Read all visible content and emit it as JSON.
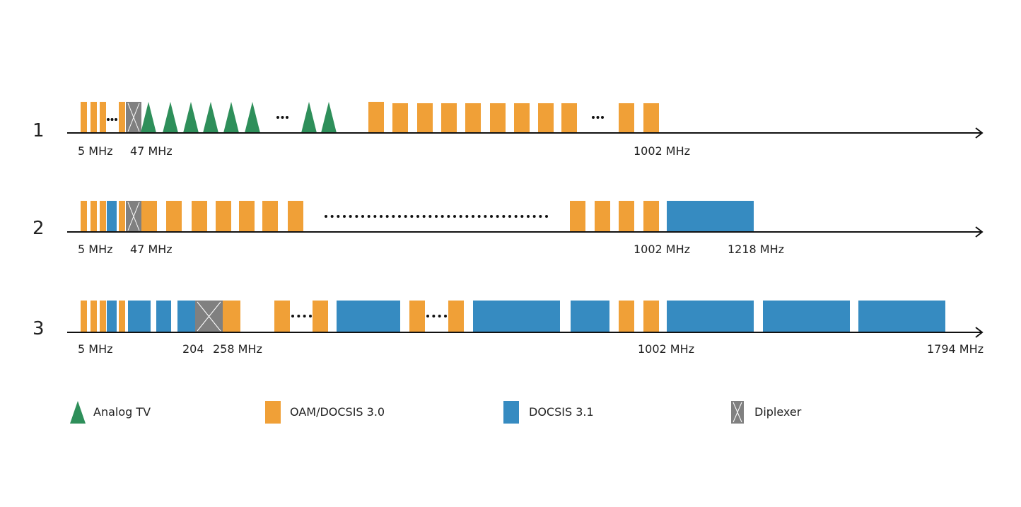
{
  "colors": {
    "analog_tv": "#2E8F5A",
    "docsis30": "#F0A037",
    "docsis31": "#368BC1",
    "diplexer": "#808080",
    "axis": "#111111"
  },
  "rows": [
    {
      "number": "1",
      "labels": [
        "5 MHz",
        "47 MHz",
        "1002 MHz"
      ]
    },
    {
      "number": "2",
      "labels": [
        "5 MHz",
        "47 MHz",
        "1002 MHz",
        "1218 MHz"
      ]
    },
    {
      "number": "3",
      "labels": [
        "5 MHz",
        "204",
        "258 MHz",
        "1002 MHz",
        "1794 MHz"
      ]
    }
  ],
  "legend": [
    {
      "type": "analog_tv",
      "label": "Analog TV"
    },
    {
      "type": "docsis30",
      "label": "OAM/DOCSIS 3.0"
    },
    {
      "type": "docsis31",
      "label": "DOCSIS 3.1"
    },
    {
      "type": "diplexer",
      "label": "Diplexer"
    }
  ]
}
